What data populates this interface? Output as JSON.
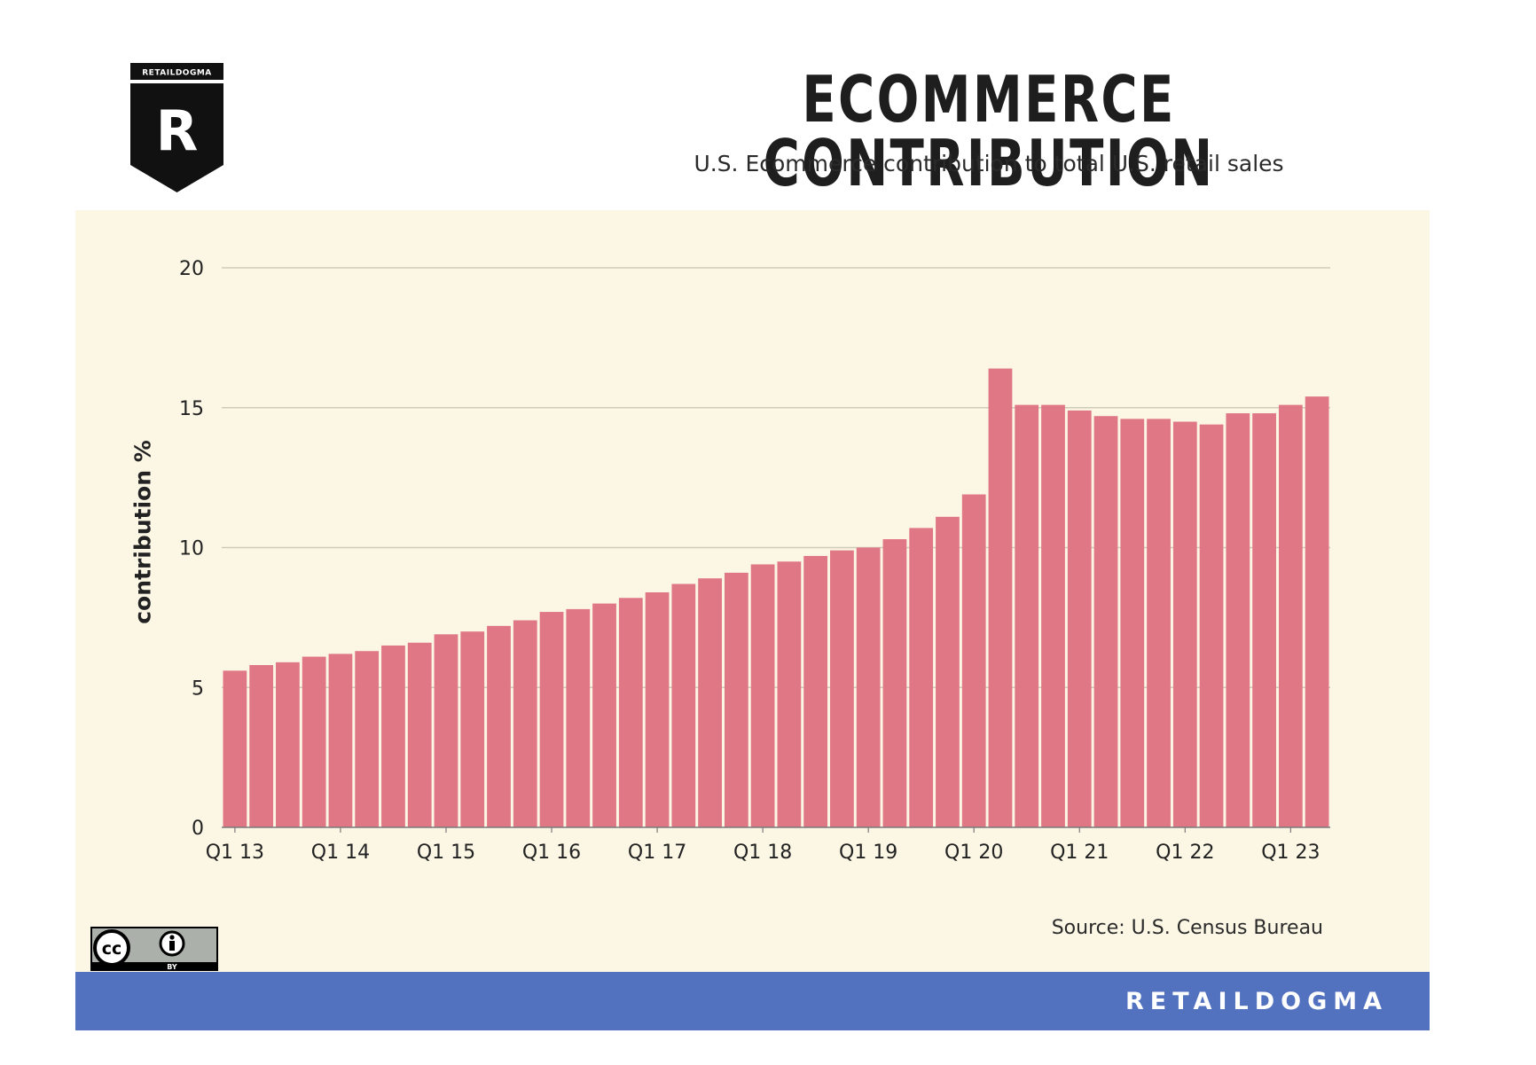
{
  "brand": {
    "logo_text": "RETAILDOGMA",
    "logo_letter": "R",
    "footer_label": "RETAILDOGMA"
  },
  "header": {
    "title": "ECOMMERCE CONTRIBUTION",
    "subtitle": "U.S. Ecommerce contribution to total U.S. retail sales"
  },
  "source": "Source: U.S. Census Bureau",
  "license": {
    "cc": "cc",
    "by": "BY"
  },
  "colors": {
    "bar": "#e07785",
    "panel": "#fcf7e5",
    "footer": "#5272c0",
    "grid": "#cfcbbb"
  },
  "chart_data": {
    "type": "bar",
    "title": "ECOMMERCE CONTRIBUTION",
    "subtitle": "U.S. Ecommerce contribution to total U.S. retail sales",
    "ylabel": "contribution %",
    "xlabel": "",
    "ylim": [
      0,
      20
    ],
    "yticks": [
      0,
      5,
      10,
      15,
      20
    ],
    "grid": true,
    "legend": "none",
    "categories": [
      "Q1 13",
      "Q2 13",
      "Q3 13",
      "Q4 13",
      "Q1 14",
      "Q2 14",
      "Q3 14",
      "Q4 14",
      "Q1 15",
      "Q2 15",
      "Q3 15",
      "Q4 15",
      "Q1 16",
      "Q2 16",
      "Q3 16",
      "Q4 16",
      "Q1 17",
      "Q2 17",
      "Q3 17",
      "Q4 17",
      "Q1 18",
      "Q2 18",
      "Q3 18",
      "Q4 18",
      "Q1 19",
      "Q2 19",
      "Q3 19",
      "Q4 19",
      "Q1 20",
      "Q2 20",
      "Q3 20",
      "Q4 20",
      "Q1 21",
      "Q2 21",
      "Q3 21",
      "Q4 21",
      "Q1 22",
      "Q2 22",
      "Q3 22",
      "Q4 22",
      "Q1 23",
      "Q2 23"
    ],
    "tick_labels": [
      "Q1 13",
      "Q1 14",
      "Q1 15",
      "Q1 16",
      "Q1 17",
      "Q1 18",
      "Q1 19",
      "Q1 20",
      "Q1 21",
      "Q1 22",
      "Q1 23"
    ],
    "values": [
      5.6,
      5.8,
      5.9,
      6.1,
      6.2,
      6.3,
      6.5,
      6.6,
      6.9,
      7.0,
      7.2,
      7.4,
      7.7,
      7.8,
      8.0,
      8.2,
      8.4,
      8.7,
      8.9,
      9.1,
      9.4,
      9.5,
      9.7,
      9.9,
      10.0,
      10.3,
      10.7,
      11.1,
      11.9,
      16.4,
      15.1,
      15.1,
      14.9,
      14.7,
      14.6,
      14.6,
      14.5,
      14.4,
      14.8,
      14.8,
      15.1,
      15.4
    ]
  }
}
